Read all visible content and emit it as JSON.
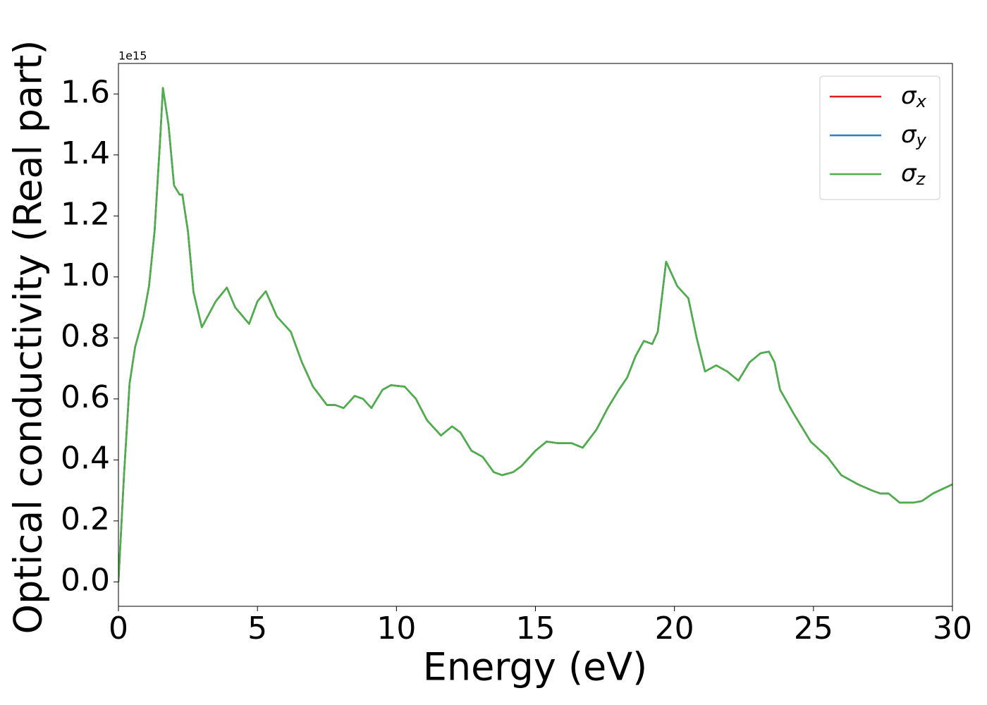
{
  "chart_data": {
    "type": "line",
    "xlabel": "Energy (eV)",
    "ylabel": "Optical conductivity (Real part)",
    "y_offset_label": "1e15",
    "x": [
      0,
      0.2,
      0.4,
      0.6,
      0.9,
      1.1,
      1.3,
      1.5,
      1.6,
      1.8,
      2.0,
      2.2,
      2.3,
      2.5,
      2.7,
      3.0,
      3.5,
      3.9,
      4.2,
      4.7,
      5.0,
      5.3,
      5.7,
      6.2,
      6.6,
      7.0,
      7.5,
      7.8,
      8.1,
      8.5,
      8.8,
      9.1,
      9.5,
      9.8,
      10.3,
      10.7,
      11.1,
      11.6,
      12.0,
      12.3,
      12.7,
      13.1,
      13.5,
      13.8,
      14.2,
      14.5,
      15.0,
      15.4,
      15.8,
      16.3,
      16.7,
      17.2,
      17.6,
      18.0,
      18.3,
      18.6,
      18.9,
      19.2,
      19.4,
      19.7,
      20.1,
      20.5,
      20.8,
      21.1,
      21.5,
      21.9,
      22.3,
      22.7,
      23.1,
      23.4,
      23.6,
      23.8,
      24.3,
      24.9,
      25.5,
      26.0,
      26.6,
      27.1,
      27.4,
      27.7,
      28.1,
      28.6,
      28.9,
      29.3,
      30
    ],
    "series": [
      {
        "name": "σx",
        "color": "#e41a1c",
        "values": [
          0.0,
          0.35,
          0.65,
          0.77,
          0.87,
          0.97,
          1.15,
          1.45,
          1.62,
          1.5,
          1.3,
          1.27,
          1.27,
          1.15,
          0.95,
          0.835,
          0.92,
          0.965,
          0.9,
          0.846,
          0.92,
          0.953,
          0.87,
          0.82,
          0.72,
          0.64,
          0.58,
          0.58,
          0.57,
          0.61,
          0.6,
          0.57,
          0.63,
          0.645,
          0.64,
          0.6,
          0.53,
          0.48,
          0.51,
          0.49,
          0.43,
          0.41,
          0.36,
          0.35,
          0.36,
          0.38,
          0.43,
          0.46,
          0.455,
          0.455,
          0.44,
          0.5,
          0.57,
          0.63,
          0.67,
          0.74,
          0.79,
          0.78,
          0.82,
          1.05,
          0.97,
          0.93,
          0.8,
          0.69,
          0.71,
          0.69,
          0.66,
          0.72,
          0.75,
          0.755,
          0.72,
          0.63,
          0.55,
          0.46,
          0.41,
          0.35,
          0.32,
          0.3,
          0.29,
          0.29,
          0.26,
          0.26,
          0.265,
          0.29,
          0.32
        ]
      },
      {
        "name": "σy",
        "color": "#377eb8",
        "values": [
          0.0,
          0.35,
          0.65,
          0.77,
          0.87,
          0.97,
          1.15,
          1.45,
          1.62,
          1.5,
          1.3,
          1.27,
          1.27,
          1.15,
          0.95,
          0.835,
          0.92,
          0.965,
          0.9,
          0.846,
          0.92,
          0.953,
          0.87,
          0.82,
          0.72,
          0.64,
          0.58,
          0.58,
          0.57,
          0.61,
          0.6,
          0.57,
          0.63,
          0.645,
          0.64,
          0.6,
          0.53,
          0.48,
          0.51,
          0.49,
          0.43,
          0.41,
          0.36,
          0.35,
          0.36,
          0.38,
          0.43,
          0.46,
          0.455,
          0.455,
          0.44,
          0.5,
          0.57,
          0.63,
          0.67,
          0.74,
          0.79,
          0.78,
          0.82,
          1.05,
          0.97,
          0.93,
          0.8,
          0.69,
          0.71,
          0.69,
          0.66,
          0.72,
          0.75,
          0.755,
          0.72,
          0.63,
          0.55,
          0.46,
          0.41,
          0.35,
          0.32,
          0.3,
          0.29,
          0.29,
          0.26,
          0.26,
          0.265,
          0.29,
          0.32
        ]
      },
      {
        "name": "σz",
        "color": "#4daf4a",
        "values": [
          0.0,
          0.35,
          0.65,
          0.77,
          0.87,
          0.97,
          1.15,
          1.45,
          1.62,
          1.5,
          1.3,
          1.27,
          1.27,
          1.15,
          0.95,
          0.835,
          0.92,
          0.965,
          0.9,
          0.846,
          0.92,
          0.953,
          0.87,
          0.82,
          0.72,
          0.64,
          0.58,
          0.58,
          0.57,
          0.61,
          0.6,
          0.57,
          0.63,
          0.645,
          0.64,
          0.6,
          0.53,
          0.48,
          0.51,
          0.49,
          0.43,
          0.41,
          0.36,
          0.35,
          0.36,
          0.38,
          0.43,
          0.46,
          0.455,
          0.455,
          0.44,
          0.5,
          0.57,
          0.63,
          0.67,
          0.74,
          0.79,
          0.78,
          0.82,
          1.05,
          0.97,
          0.93,
          0.8,
          0.69,
          0.71,
          0.69,
          0.66,
          0.72,
          0.75,
          0.755,
          0.72,
          0.63,
          0.55,
          0.46,
          0.41,
          0.35,
          0.32,
          0.3,
          0.29,
          0.29,
          0.26,
          0.26,
          0.265,
          0.29,
          0.32
        ]
      }
    ],
    "xlim": [
      0,
      30
    ],
    "xticks": [
      0,
      5,
      10,
      15,
      20,
      25,
      30
    ],
    "ylim": [
      -0.08,
      1.7
    ],
    "yticks": [
      {
        "value": 0,
        "label": "0.0"
      },
      0.2,
      0.4,
      0.6,
      0.8,
      {
        "value": 1,
        "label": "1.0"
      },
      1.2,
      1.4,
      1.6
    ],
    "grid": false,
    "legend": "upper right"
  }
}
